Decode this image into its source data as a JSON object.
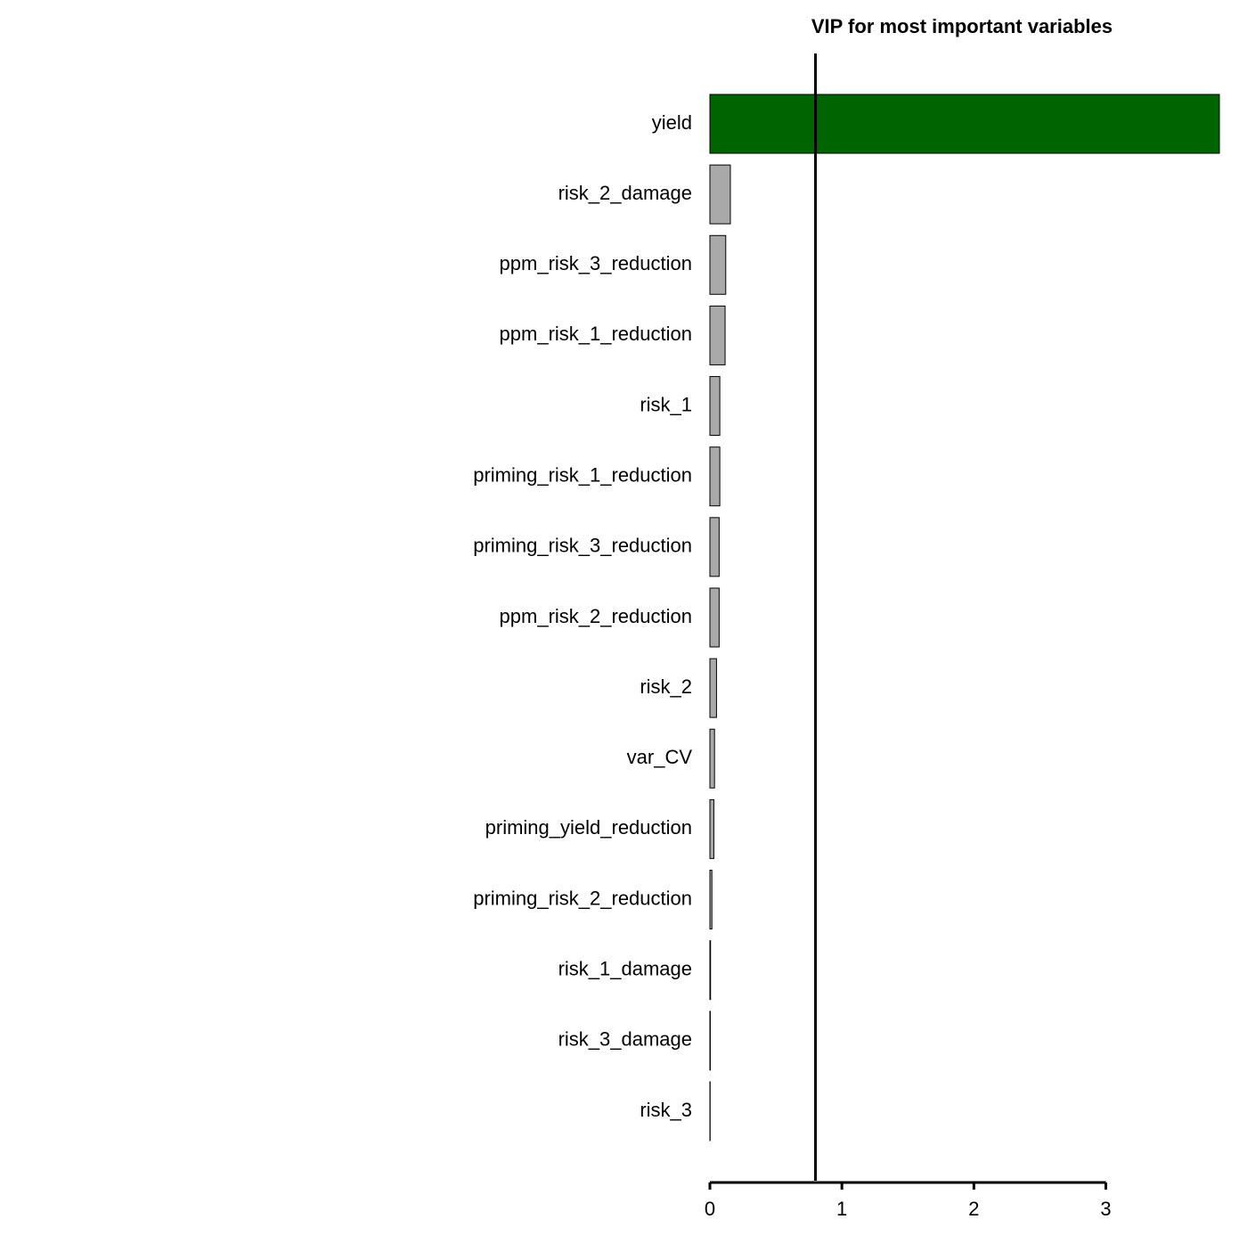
{
  "chart_data": {
    "type": "bar",
    "orientation": "horizontal",
    "title": "VIP for most important variables",
    "categories": [
      "yield",
      "risk_2_damage",
      "ppm_risk_3_reduction",
      "ppm_risk_1_reduction",
      "risk_1",
      "priming_risk_1_reduction",
      "priming_risk_3_reduction",
      "ppm_risk_2_reduction",
      "risk_2",
      "var_CV",
      "priming_yield_reduction",
      "priming_risk_2_reduction",
      "risk_1_damage",
      "risk_3_damage",
      "risk_3"
    ],
    "values": [
      3.86,
      0.155,
      0.12,
      0.115,
      0.075,
      0.075,
      0.07,
      0.07,
      0.05,
      0.035,
      0.03,
      0.015,
      0.005,
      0.003,
      0.002
    ],
    "color": "#a9a9a9",
    "highlight_color": "#006400",
    "threshold": 0.8,
    "xlim": [
      0,
      3.86
    ],
    "xticks": [
      0,
      1,
      2,
      3
    ]
  }
}
